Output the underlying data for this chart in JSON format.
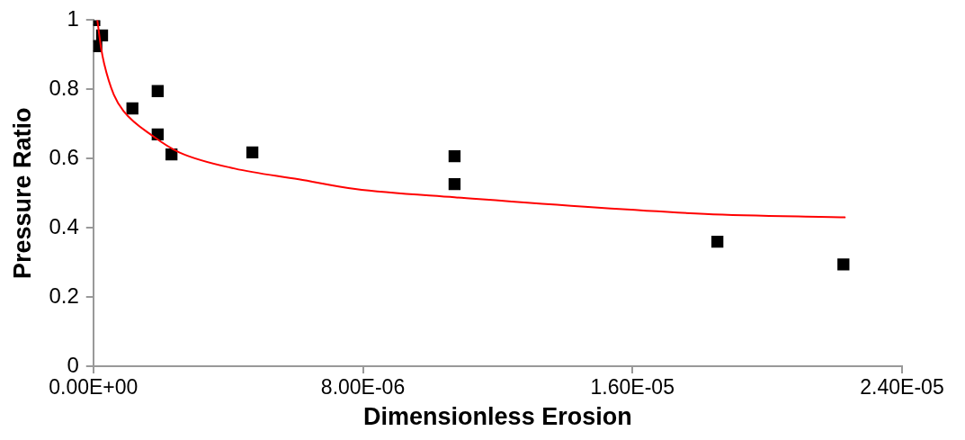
{
  "chart_data": {
    "type": "scatter",
    "xlabel": "Dimensionless Erosion",
    "ylabel": "Pressure Ratio",
    "xlim": [
      0,
      2.4e-05
    ],
    "xticks": [
      {
        "value": 0,
        "label": "0.00E+00"
      },
      {
        "value": 8e-06,
        "label": "8.00E-06"
      },
      {
        "value": 1.6e-05,
        "label": "1.60E-05"
      },
      {
        "value": 2.4e-05,
        "label": "2.40E-05"
      }
    ],
    "ylim": [
      0,
      1
    ],
    "yticks": [
      0,
      0.2,
      0.4,
      0.6,
      0.8,
      1
    ],
    "grid": false,
    "legend": false,
    "marker": "square",
    "series": [
      {
        "type": "scatter",
        "color": "#000000",
        "x": [
          3e-08,
          2.6e-07,
          9e-08,
          1.16e-06,
          1.91e-06,
          1.91e-06,
          2.32e-06,
          4.72e-06,
          1.072e-05,
          1.072e-05,
          1.852e-05,
          2.226e-05
        ],
        "values": [
          1.0,
          0.956,
          0.925,
          0.745,
          0.795,
          0.67,
          0.612,
          0.618,
          0.607,
          0.526,
          0.36,
          0.294
        ]
      },
      {
        "type": "line",
        "color": "#ff0000",
        "marker": "none",
        "line_style": "solid",
        "x": [
          1.2e-07,
          2.3e-07,
          3.2e-07,
          6.1e-07,
          9e-07,
          1.77e-06,
          2.55e-06,
          4.2e-06,
          6.1e-06,
          7.77e-06,
          1.072e-05,
          1.815e-05,
          2.23e-05
        ],
        "values": [
          1.0,
          0.92,
          0.875,
          0.784,
          0.737,
          0.665,
          0.618,
          0.571,
          0.54,
          0.512,
          0.488,
          0.44,
          0.43
        ]
      }
    ]
  }
}
